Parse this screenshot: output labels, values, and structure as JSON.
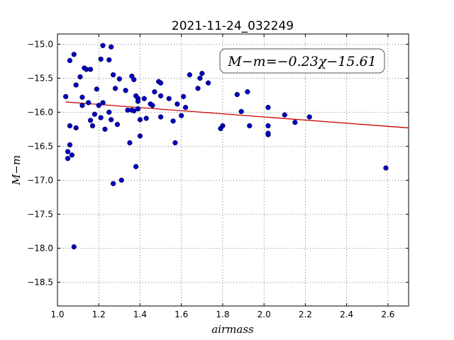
{
  "chart_data": {
    "type": "scatter",
    "title": "2021-11-24_032249",
    "xlabel": "airmass",
    "ylabel": "M−m",
    "xlim": [
      1.0,
      2.7
    ],
    "ylim": [
      -18.85,
      -14.85
    ],
    "y_inverted": true,
    "x_ticks": [
      1.0,
      1.2,
      1.4,
      1.6,
      1.8,
      2.0,
      2.2,
      2.4,
      2.6
    ],
    "x_tick_labels": [
      "1.0",
      "1.2",
      "1.4",
      "1.6",
      "1.8",
      "2.0",
      "2.2",
      "2.4",
      "2.6"
    ],
    "y_ticks": [
      -15.0,
      -15.5,
      -16.0,
      -16.5,
      -17.0,
      -17.5,
      -18.0,
      -18.5
    ],
    "y_tick_labels": [
      "−15.0",
      "−15.5",
      "−16.0",
      "−16.5",
      "−17.0",
      "−17.5",
      "−18.0",
      "−18.5"
    ],
    "grid": true,
    "annotation": "M−m=−0.23χ−15.61",
    "fit": {
      "slope": -0.23,
      "intercept": -15.61,
      "x_range": [
        1.04,
        2.7
      ],
      "color": "#cc0000"
    },
    "marker_color": "#0000bb",
    "points": [
      [
        1.04,
        -15.77
      ],
      [
        1.05,
        -16.58
      ],
      [
        1.05,
        -16.68
      ],
      [
        1.06,
        -16.2
      ],
      [
        1.06,
        -16.48
      ],
      [
        1.06,
        -15.24
      ],
      [
        1.07,
        -16.63
      ],
      [
        1.08,
        -15.15
      ],
      [
        1.08,
        -17.98
      ],
      [
        1.09,
        -15.6
      ],
      [
        1.09,
        -16.23
      ],
      [
        1.11,
        -15.48
      ],
      [
        1.12,
        -15.9
      ],
      [
        1.12,
        -15.78
      ],
      [
        1.13,
        -15.35
      ],
      [
        1.14,
        -15.37
      ],
      [
        1.15,
        -15.86
      ],
      [
        1.16,
        -15.37
      ],
      [
        1.16,
        -16.12
      ],
      [
        1.17,
        -16.2
      ],
      [
        1.18,
        -16.03
      ],
      [
        1.19,
        -15.66
      ],
      [
        1.2,
        -15.9
      ],
      [
        1.21,
        -15.22
      ],
      [
        1.21,
        -16.08
      ],
      [
        1.22,
        -15.02
      ],
      [
        1.22,
        -15.86
      ],
      [
        1.23,
        -16.25
      ],
      [
        1.25,
        -15.23
      ],
      [
        1.25,
        -16.0
      ],
      [
        1.26,
        -15.04
      ],
      [
        1.26,
        -16.11
      ],
      [
        1.27,
        -17.05
      ],
      [
        1.27,
        -15.45
      ],
      [
        1.28,
        -15.65
      ],
      [
        1.29,
        -16.18
      ],
      [
        1.3,
        -15.51
      ],
      [
        1.31,
        -17.0
      ],
      [
        1.33,
        -15.68
      ],
      [
        1.34,
        -15.97
      ],
      [
        1.35,
        -16.45
      ],
      [
        1.36,
        -15.47
      ],
      [
        1.36,
        -15.97
      ],
      [
        1.37,
        -15.52
      ],
      [
        1.37,
        -15.98
      ],
      [
        1.38,
        -16.8
      ],
      [
        1.38,
        -15.76
      ],
      [
        1.39,
        -15.8
      ],
      [
        1.39,
        -15.84
      ],
      [
        1.39,
        -15.95
      ],
      [
        1.4,
        -16.11
      ],
      [
        1.4,
        -16.35
      ],
      [
        1.42,
        -15.8
      ],
      [
        1.43,
        -16.09
      ],
      [
        1.45,
        -15.88
      ],
      [
        1.46,
        -15.9
      ],
      [
        1.47,
        -15.7
      ],
      [
        1.49,
        -15.55
      ],
      [
        1.5,
        -15.57
      ],
      [
        1.5,
        -15.76
      ],
      [
        1.5,
        -16.07
      ],
      [
        1.54,
        -15.8
      ],
      [
        1.56,
        -16.13
      ],
      [
        1.57,
        -16.45
      ],
      [
        1.58,
        -15.88
      ],
      [
        1.6,
        -16.05
      ],
      [
        1.61,
        -15.77
      ],
      [
        1.62,
        -15.93
      ],
      [
        1.64,
        -15.45
      ],
      [
        1.68,
        -15.65
      ],
      [
        1.69,
        -15.5
      ],
      [
        1.7,
        -15.43
      ],
      [
        1.73,
        -15.57
      ],
      [
        1.79,
        -16.24
      ],
      [
        1.8,
        -16.2
      ],
      [
        1.87,
        -15.74
      ],
      [
        1.89,
        -15.99
      ],
      [
        1.92,
        -15.7
      ],
      [
        1.93,
        -16.2
      ],
      [
        2.02,
        -15.93
      ],
      [
        2.02,
        -16.2
      ],
      [
        2.02,
        -16.33
      ],
      [
        2.02,
        -16.31
      ],
      [
        2.1,
        -16.04
      ],
      [
        2.15,
        -16.15
      ],
      [
        2.22,
        -16.07
      ],
      [
        2.59,
        -16.82
      ]
    ]
  }
}
